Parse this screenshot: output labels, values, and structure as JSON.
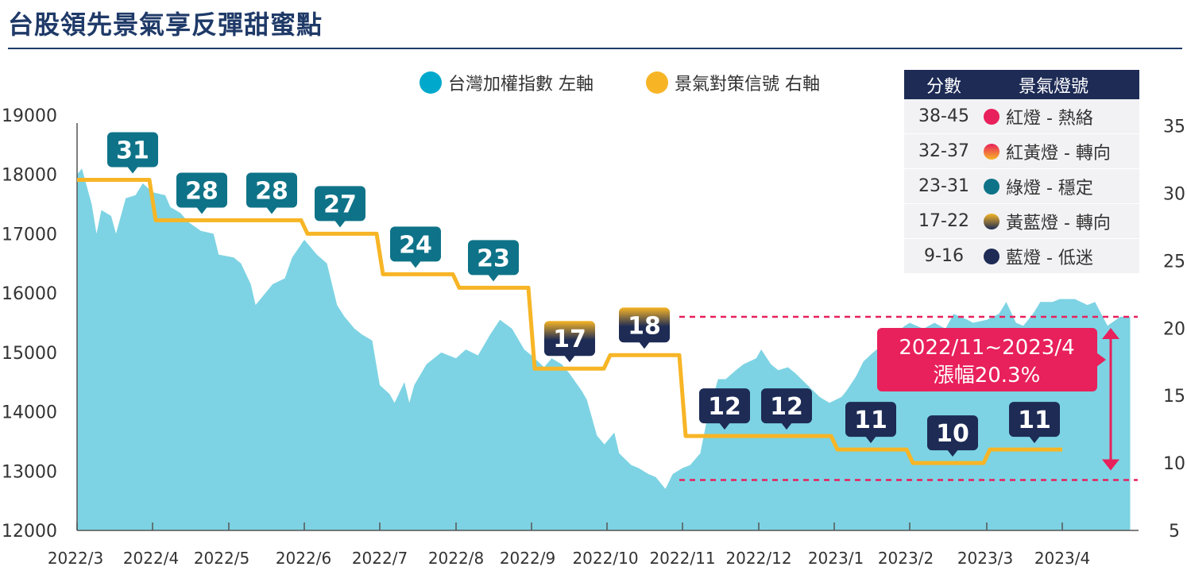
{
  "title": "台股領先景氣享反彈甜蜜點",
  "legend": {
    "taiex_label": "台灣加權指數  左軸",
    "taiex_color": "#00a8cc",
    "signal_label": "景氣對策信號  右軸",
    "signal_color": "#f7b526"
  },
  "score_table": {
    "header": [
      "分數",
      "景氣燈號"
    ],
    "rows": [
      {
        "range": "38-45",
        "label": "紅燈 - 熱絡",
        "color": "#e8205b"
      },
      {
        "range": "32-37",
        "label": "紅黃燈 - 轉向",
        "color": "#f07a3a"
      },
      {
        "range": "23-31",
        "label": "綠燈 - 穩定",
        "color": "#0e7388"
      },
      {
        "range": "17-22",
        "label": "黃藍燈 - 轉向",
        "color": "#8c7236"
      },
      {
        "range": "9-16",
        "label": "藍燈 - 低迷",
        "color": "#1d2b55"
      }
    ]
  },
  "annotation": {
    "line1": "2022/11~2023/4",
    "line2": "漲幅20.3%",
    "color": "#e8205b"
  },
  "chart_data": {
    "type": "area",
    "x_ticks": [
      "2022/3",
      "2022/4",
      "2022/5",
      "2022/6",
      "2022/7",
      "2022/8",
      "2022/9",
      "2022/10",
      "2022/11",
      "2022/12",
      "2023/1",
      "2023/2",
      "2023/3",
      "2023/4"
    ],
    "y_left_ticks": [
      12000,
      13000,
      14000,
      15000,
      16000,
      17000,
      18000,
      19000
    ],
    "y_left_range": [
      12000,
      19000
    ],
    "y_right_ticks": [
      5,
      10,
      15,
      20,
      25,
      30,
      35
    ],
    "y_right_range": [
      5,
      35.8
    ],
    "grid": false,
    "series": [
      {
        "name": "台灣加權指數",
        "axis": "left",
        "color": "#7dd3e3",
        "points": [
          [
            "2022-03-01",
            18000
          ],
          [
            "2022-03-03",
            18100
          ],
          [
            "2022-03-07",
            17500
          ],
          [
            "2022-03-09",
            17000
          ],
          [
            "2022-03-11",
            17400
          ],
          [
            "2022-03-15",
            17300
          ],
          [
            "2022-03-17",
            17000
          ],
          [
            "2022-03-21",
            17600
          ],
          [
            "2022-03-25",
            17650
          ],
          [
            "2022-03-28",
            17850
          ],
          [
            "2022-04-01",
            17700
          ],
          [
            "2022-04-06",
            17650
          ],
          [
            "2022-04-08",
            17450
          ],
          [
            "2022-04-12",
            17350
          ],
          [
            "2022-04-15",
            17200
          ],
          [
            "2022-04-20",
            17050
          ],
          [
            "2022-04-25",
            17000
          ],
          [
            "2022-04-27",
            16650
          ],
          [
            "2022-05-03",
            16600
          ],
          [
            "2022-05-06",
            16500
          ],
          [
            "2022-05-10",
            16150
          ],
          [
            "2022-05-12",
            15800
          ],
          [
            "2022-05-16",
            16000
          ],
          [
            "2022-05-19",
            16150
          ],
          [
            "2022-05-24",
            16250
          ],
          [
            "2022-05-27",
            16600
          ],
          [
            "2022-06-01",
            16900
          ],
          [
            "2022-06-06",
            16650
          ],
          [
            "2022-06-10",
            16500
          ],
          [
            "2022-06-14",
            15800
          ],
          [
            "2022-06-17",
            15600
          ],
          [
            "2022-06-21",
            15400
          ],
          [
            "2022-06-24",
            15300
          ],
          [
            "2022-06-28",
            15200
          ],
          [
            "2022-07-01",
            14450
          ],
          [
            "2022-07-05",
            14300
          ],
          [
            "2022-07-07",
            14150
          ],
          [
            "2022-07-11",
            14500
          ],
          [
            "2022-07-13",
            14150
          ],
          [
            "2022-07-15",
            14450
          ],
          [
            "2022-07-20",
            14800
          ],
          [
            "2022-07-26",
            15000
          ],
          [
            "2022-08-01",
            14900
          ],
          [
            "2022-08-05",
            15050
          ],
          [
            "2022-08-10",
            14950
          ],
          [
            "2022-08-15",
            15300
          ],
          [
            "2022-08-19",
            15550
          ],
          [
            "2022-08-24",
            15400
          ],
          [
            "2022-08-29",
            15050
          ],
          [
            "2022-09-01",
            14950
          ],
          [
            "2022-09-06",
            14750
          ],
          [
            "2022-09-09",
            14900
          ],
          [
            "2022-09-13",
            14800
          ],
          [
            "2022-09-16",
            14650
          ],
          [
            "2022-09-21",
            14350
          ],
          [
            "2022-09-23",
            14200
          ],
          [
            "2022-09-27",
            13600
          ],
          [
            "2022-09-30",
            13450
          ],
          [
            "2022-10-04",
            13650
          ],
          [
            "2022-10-06",
            13300
          ],
          [
            "2022-10-11",
            13100
          ],
          [
            "2022-10-14",
            13050
          ],
          [
            "2022-10-18",
            12950
          ],
          [
            "2022-10-21",
            12900
          ],
          [
            "2022-10-25",
            12700
          ],
          [
            "2022-10-28",
            12950
          ],
          [
            "2022-11-01",
            13050
          ],
          [
            "2022-11-04",
            13100
          ],
          [
            "2022-11-08",
            13300
          ],
          [
            "2022-11-11",
            13950
          ],
          [
            "2022-11-15",
            14550
          ],
          [
            "2022-11-18",
            14550
          ],
          [
            "2022-11-22",
            14700
          ],
          [
            "2022-11-25",
            14800
          ],
          [
            "2022-11-30",
            14900
          ],
          [
            "2022-12-02",
            15050
          ],
          [
            "2022-12-06",
            14800
          ],
          [
            "2022-12-09",
            14700
          ],
          [
            "2022-12-13",
            14750
          ],
          [
            "2022-12-16",
            14650
          ],
          [
            "2022-12-21",
            14450
          ],
          [
            "2022-12-26",
            14250
          ],
          [
            "2022-12-30",
            14150
          ],
          [
            "2023-01-04",
            14250
          ],
          [
            "2023-01-06",
            14350
          ],
          [
            "2023-01-10",
            14600
          ],
          [
            "2023-01-13",
            14850
          ],
          [
            "2023-01-17",
            15000
          ],
          [
            "2023-01-30",
            15450
          ],
          [
            "2023-02-01",
            15500
          ],
          [
            "2023-02-06",
            15400
          ],
          [
            "2023-02-10",
            15500
          ],
          [
            "2023-02-14",
            15400
          ],
          [
            "2023-02-17",
            15650
          ],
          [
            "2023-02-22",
            15550
          ],
          [
            "2023-02-24",
            15500
          ],
          [
            "2023-03-01",
            15550
          ],
          [
            "2023-03-06",
            15650
          ],
          [
            "2023-03-09",
            15850
          ],
          [
            "2023-03-13",
            15500
          ],
          [
            "2023-03-16",
            15450
          ],
          [
            "2023-03-20",
            15650
          ],
          [
            "2023-03-23",
            15850
          ],
          [
            "2023-03-28",
            15850
          ],
          [
            "2023-03-31",
            15900
          ],
          [
            "2023-04-06",
            15900
          ],
          [
            "2023-04-11",
            15800
          ],
          [
            "2023-04-14",
            15850
          ],
          [
            "2023-04-19",
            15450
          ],
          [
            "2023-04-24",
            15600
          ],
          [
            "2023-04-28",
            15600
          ]
        ]
      },
      {
        "name": "景氣對策信號",
        "axis": "right",
        "color": "#f7b526",
        "points": [
          [
            "2022-03",
            31
          ],
          [
            "2022-04",
            28
          ],
          [
            "2022-05",
            28
          ],
          [
            "2022-06",
            27
          ],
          [
            "2022-07",
            24
          ],
          [
            "2022-08",
            23
          ],
          [
            "2022-09",
            17
          ],
          [
            "2022-10",
            18
          ],
          [
            "2022-11",
            12
          ],
          [
            "2022-12",
            12
          ],
          [
            "2023-01",
            11
          ],
          [
            "2023-02",
            10
          ],
          [
            "2023-03",
            11
          ]
        ]
      }
    ],
    "reference_lines_left": [
      15600,
      12850
    ]
  }
}
